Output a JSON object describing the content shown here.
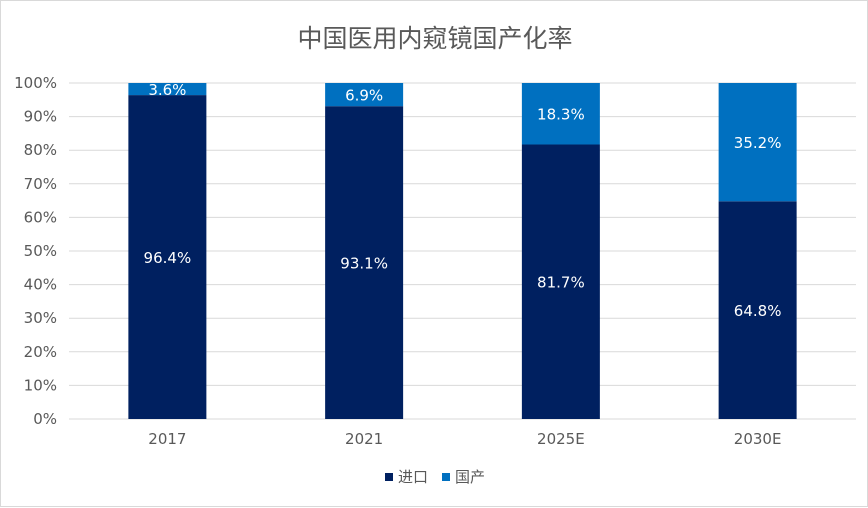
{
  "chart_data": {
    "type": "bar",
    "stacked": true,
    "title": "中国医用内窥镜国产化率",
    "categories": [
      "2017",
      "2021",
      "2025E",
      "2030E"
    ],
    "series": [
      {
        "name": "进口",
        "color": "#002060",
        "values": [
          96.4,
          93.1,
          81.7,
          64.8
        ],
        "labels": [
          "96.4%",
          "93.1%",
          "81.7%",
          "64.8%"
        ]
      },
      {
        "name": "国产",
        "color": "#0070c0",
        "values": [
          3.6,
          6.9,
          18.3,
          35.2
        ],
        "labels": [
          "3.6%",
          "6.9%",
          "18.3%",
          "35.2%"
        ]
      }
    ],
    "ylim": [
      0,
      100
    ],
    "y_ticks": [
      "0%",
      "10%",
      "20%",
      "30%",
      "40%",
      "50%",
      "60%",
      "70%",
      "80%",
      "90%",
      "100%"
    ],
    "grid": true,
    "legend_position": "bottom"
  }
}
